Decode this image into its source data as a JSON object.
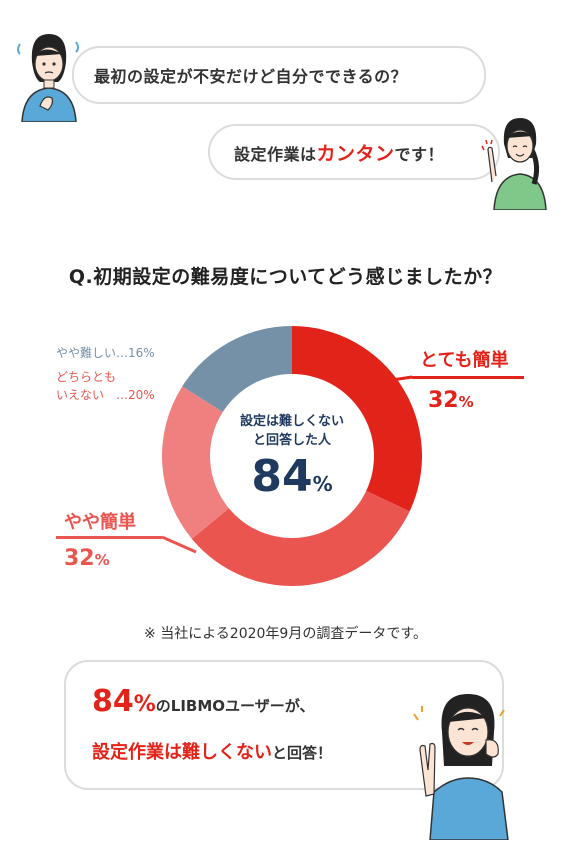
{
  "conversation": {
    "question_bubble": "最初の設定が不安だけど自分でできるの？",
    "answer_prefix": "設定作業は",
    "answer_highlight": "カンタン",
    "answer_suffix": "です！"
  },
  "survey": {
    "question": "Q.初期設定の難易度についてどう感じましたか？",
    "center_caption_line1": "設定は難しくない",
    "center_caption_line2": "と回答した人",
    "center_value": "84",
    "center_unit": "%"
  },
  "chart_data": {
    "type": "pie",
    "slices": [
      {
        "label": "とても簡単",
        "value": 32,
        "color": "#e2231a"
      },
      {
        "label": "やや簡単",
        "value": 32,
        "color": "#ea5550"
      },
      {
        "label": "どちらともいえない",
        "value": 20,
        "color": "#f08080"
      },
      {
        "label": "やや難しい",
        "value": 16,
        "color": "#7591a8"
      }
    ]
  },
  "labels": {
    "very_easy_name": "とても簡単",
    "very_easy_value": "32",
    "very_easy_unit": "%",
    "easy_name": "やや簡単",
    "easy_value": "32",
    "easy_unit": "%",
    "neutral_line1": "どちらとも",
    "neutral_line2": "いえない　…20%",
    "hard": "やや難しい…16%"
  },
  "footnote": "※ 当社による2020年9月の調査データです。",
  "conclusion": {
    "value": "84",
    "unit": "%",
    "line1_suffix": "のLIBMOユーザーが、",
    "line2_highlight": "設定作業は難しくない",
    "line2_suffix": "と回答！"
  },
  "colors": {
    "accent_red": "#e2231a",
    "slate_blue": "#7591a8",
    "navy": "#1f3a5f"
  }
}
